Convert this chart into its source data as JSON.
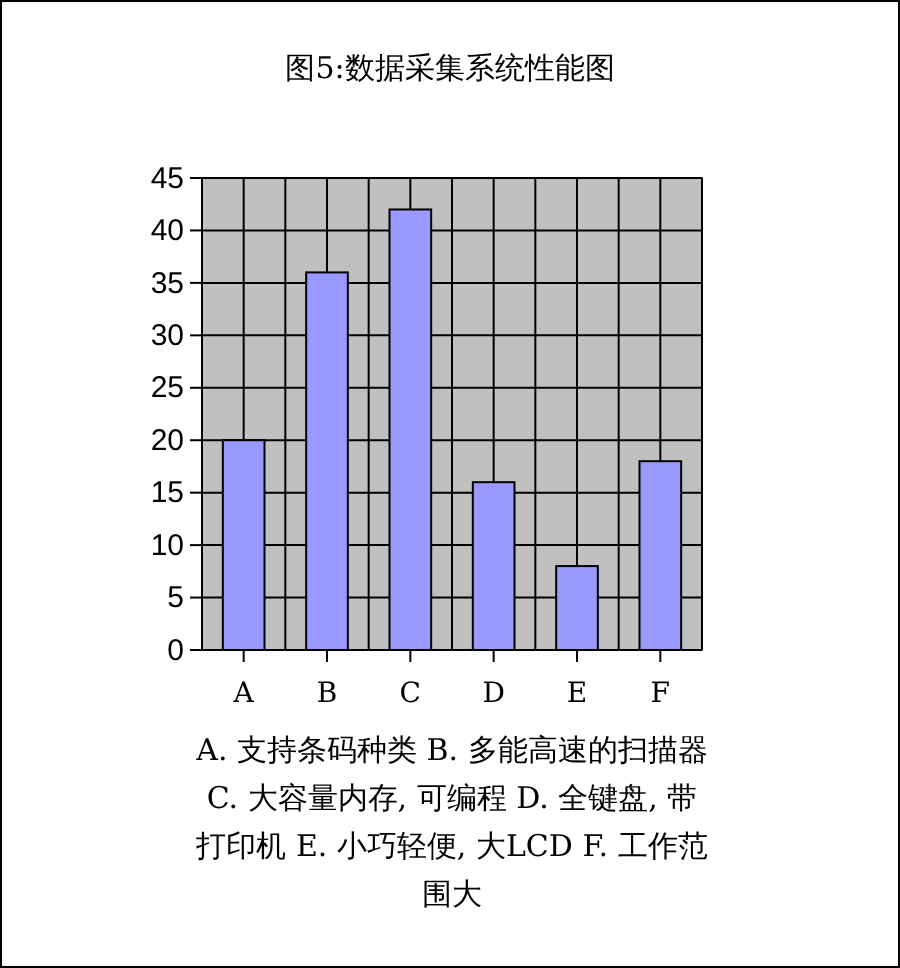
{
  "chart_data": {
    "type": "bar",
    "title": "图5:数据采集系统性能图",
    "categories": [
      "A",
      "B",
      "C",
      "D",
      "E",
      "F"
    ],
    "values": [
      20,
      36,
      42,
      16,
      8,
      18
    ],
    "color": "#9999ff",
    "ylim": [
      0,
      45
    ],
    "yticks": [
      0,
      5,
      10,
      15,
      20,
      25,
      30,
      35,
      40,
      45
    ],
    "grid": true,
    "annotations": [
      "A. 支持条码种类 B. 多能高速的扫描器 C. 大容量内存, 可编程 D. 全键盘, 带打印机 E. 小巧轻便, 大LCD F. 工作范围大"
    ]
  }
}
